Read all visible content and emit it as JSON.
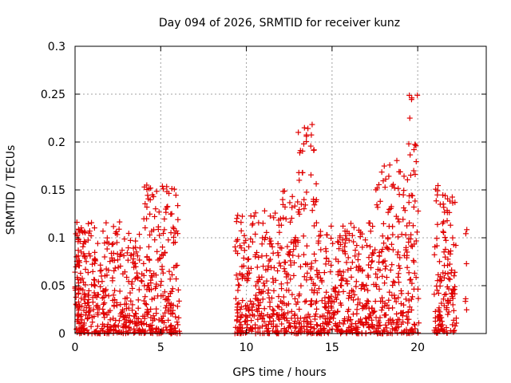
{
  "chart_data": {
    "type": "scatter",
    "title": "Day 094 of 2026, SRMTID for receiver kunz",
    "xlabel": "GPS time / hours",
    "ylabel": "SRMTID / TECUs",
    "xlim": [
      0,
      24
    ],
    "ylim": [
      0,
      0.3
    ],
    "xticks": [
      0,
      5,
      10,
      15,
      20
    ],
    "xtick_labels": [
      "0",
      "5",
      "10",
      "15",
      "20"
    ],
    "yticks": [
      0,
      0.05,
      0.1,
      0.15,
      0.2,
      0.25,
      0.3
    ],
    "ytick_labels": [
      "0",
      "0.05",
      "0.1",
      "0.15",
      "0.2",
      "0.25",
      "0.3"
    ],
    "grid": true,
    "marker": "+",
    "marker_color": "#e00000",
    "series": [
      {
        "name": "SRMTID",
        "x": [
          0.05,
          0.1,
          0.12,
          0.18,
          0.2,
          0.25,
          0.3,
          0.35,
          0.4,
          0.45,
          0.5,
          0.55,
          0.6,
          0.7,
          0.8,
          0.9,
          1.0,
          1.1,
          1.2,
          1.3,
          1.4,
          1.5,
          1.6,
          1.7,
          1.8,
          1.9,
          2.0,
          2.1,
          2.2,
          2.3,
          2.4,
          2.5,
          2.6,
          2.7,
          2.8,
          2.9,
          3.0,
          3.1,
          3.2,
          3.3,
          3.4,
          3.5,
          3.6,
          3.7,
          3.8,
          3.9,
          4.0,
          4.1,
          4.2,
          4.25,
          4.3,
          4.35,
          4.4,
          4.5,
          4.6,
          4.7,
          4.8,
          4.9,
          5.0,
          5.1,
          5.2,
          5.3,
          5.4,
          5.5,
          5.55,
          5.6,
          5.65,
          5.7,
          5.8,
          5.9,
          6.0,
          6.05,
          0.15,
          0.3,
          0.5,
          0.75,
          1.05,
          1.35,
          1.65,
          1.95,
          2.25,
          2.55,
          2.85,
          3.15,
          3.45,
          3.75,
          4.05,
          4.45,
          4.75,
          5.05,
          5.35,
          5.75,
          0.22,
          0.65,
          1.15,
          1.75,
          2.35,
          2.95,
          3.55,
          4.15,
          4.55,
          5.15,
          5.6,
          9.4,
          9.45,
          9.5,
          9.55,
          9.6,
          9.7,
          9.8,
          9.9,
          10.0,
          10.1,
          10.2,
          10.3,
          10.4,
          10.5,
          10.6,
          10.7,
          10.8,
          10.9,
          11.0,
          11.1,
          11.2,
          11.3,
          11.4,
          11.5,
          11.6,
          11.7,
          11.8,
          11.9,
          12.0,
          12.1,
          12.15,
          12.2,
          12.3,
          12.4,
          12.5,
          12.6,
          12.7,
          12.8,
          12.9,
          13.0,
          13.1,
          13.2,
          13.3,
          13.4,
          13.5,
          13.6,
          13.7,
          13.8,
          13.85,
          13.9,
          13.95,
          14.0,
          14.1,
          14.2,
          14.3,
          14.4,
          14.5,
          14.6,
          14.7,
          14.8,
          14.9,
          15.0,
          15.1,
          15.2,
          15.3,
          15.4,
          15.5,
          15.6,
          15.7,
          15.8,
          15.9,
          16.0,
          16.1,
          16.2,
          16.3,
          16.4,
          16.5,
          16.6,
          16.7,
          16.8,
          16.9,
          17.0,
          17.1,
          17.2,
          17.3,
          17.4,
          17.5,
          17.6,
          17.7,
          17.8,
          17.9,
          18.0,
          18.05,
          18.1,
          18.2,
          18.3,
          18.4,
          18.5,
          18.6,
          18.7,
          18.8,
          18.9,
          19.0,
          19.1,
          19.2,
          19.3,
          19.4,
          19.5,
          19.55,
          19.6,
          19.65,
          19.7,
          19.8,
          19.9,
          20.0,
          9.45,
          9.75,
          10.05,
          10.35,
          10.65,
          10.95,
          11.25,
          11.55,
          11.85,
          12.25,
          12.55,
          12.85,
          13.15,
          13.45,
          13.75,
          14.05,
          14.35,
          14.65,
          14.95,
          15.25,
          15.55,
          15.85,
          16.15,
          16.45,
          16.75,
          17.05,
          17.35,
          17.65,
          17.95,
          18.25,
          18.55,
          18.85,
          19.15,
          19.45,
          19.75,
          9.65,
          10.15,
          10.75,
          11.35,
          11.95,
          12.45,
          13.05,
          13.55,
          14.15,
          14.75,
          15.35,
          15.95,
          16.55,
          17.15,
          17.75,
          18.35,
          18.95,
          19.35,
          19.85,
          21.0,
          21.05,
          21.1,
          21.2,
          21.3,
          21.35,
          21.4,
          21.5,
          21.55,
          21.6,
          21.7,
          21.8,
          21.9,
          22.0,
          22.1,
          22.2,
          21.15,
          21.45,
          21.65,
          21.85,
          22.05,
          21.25,
          21.75,
          22.15,
          22.8
        ]
      }
    ]
  }
}
